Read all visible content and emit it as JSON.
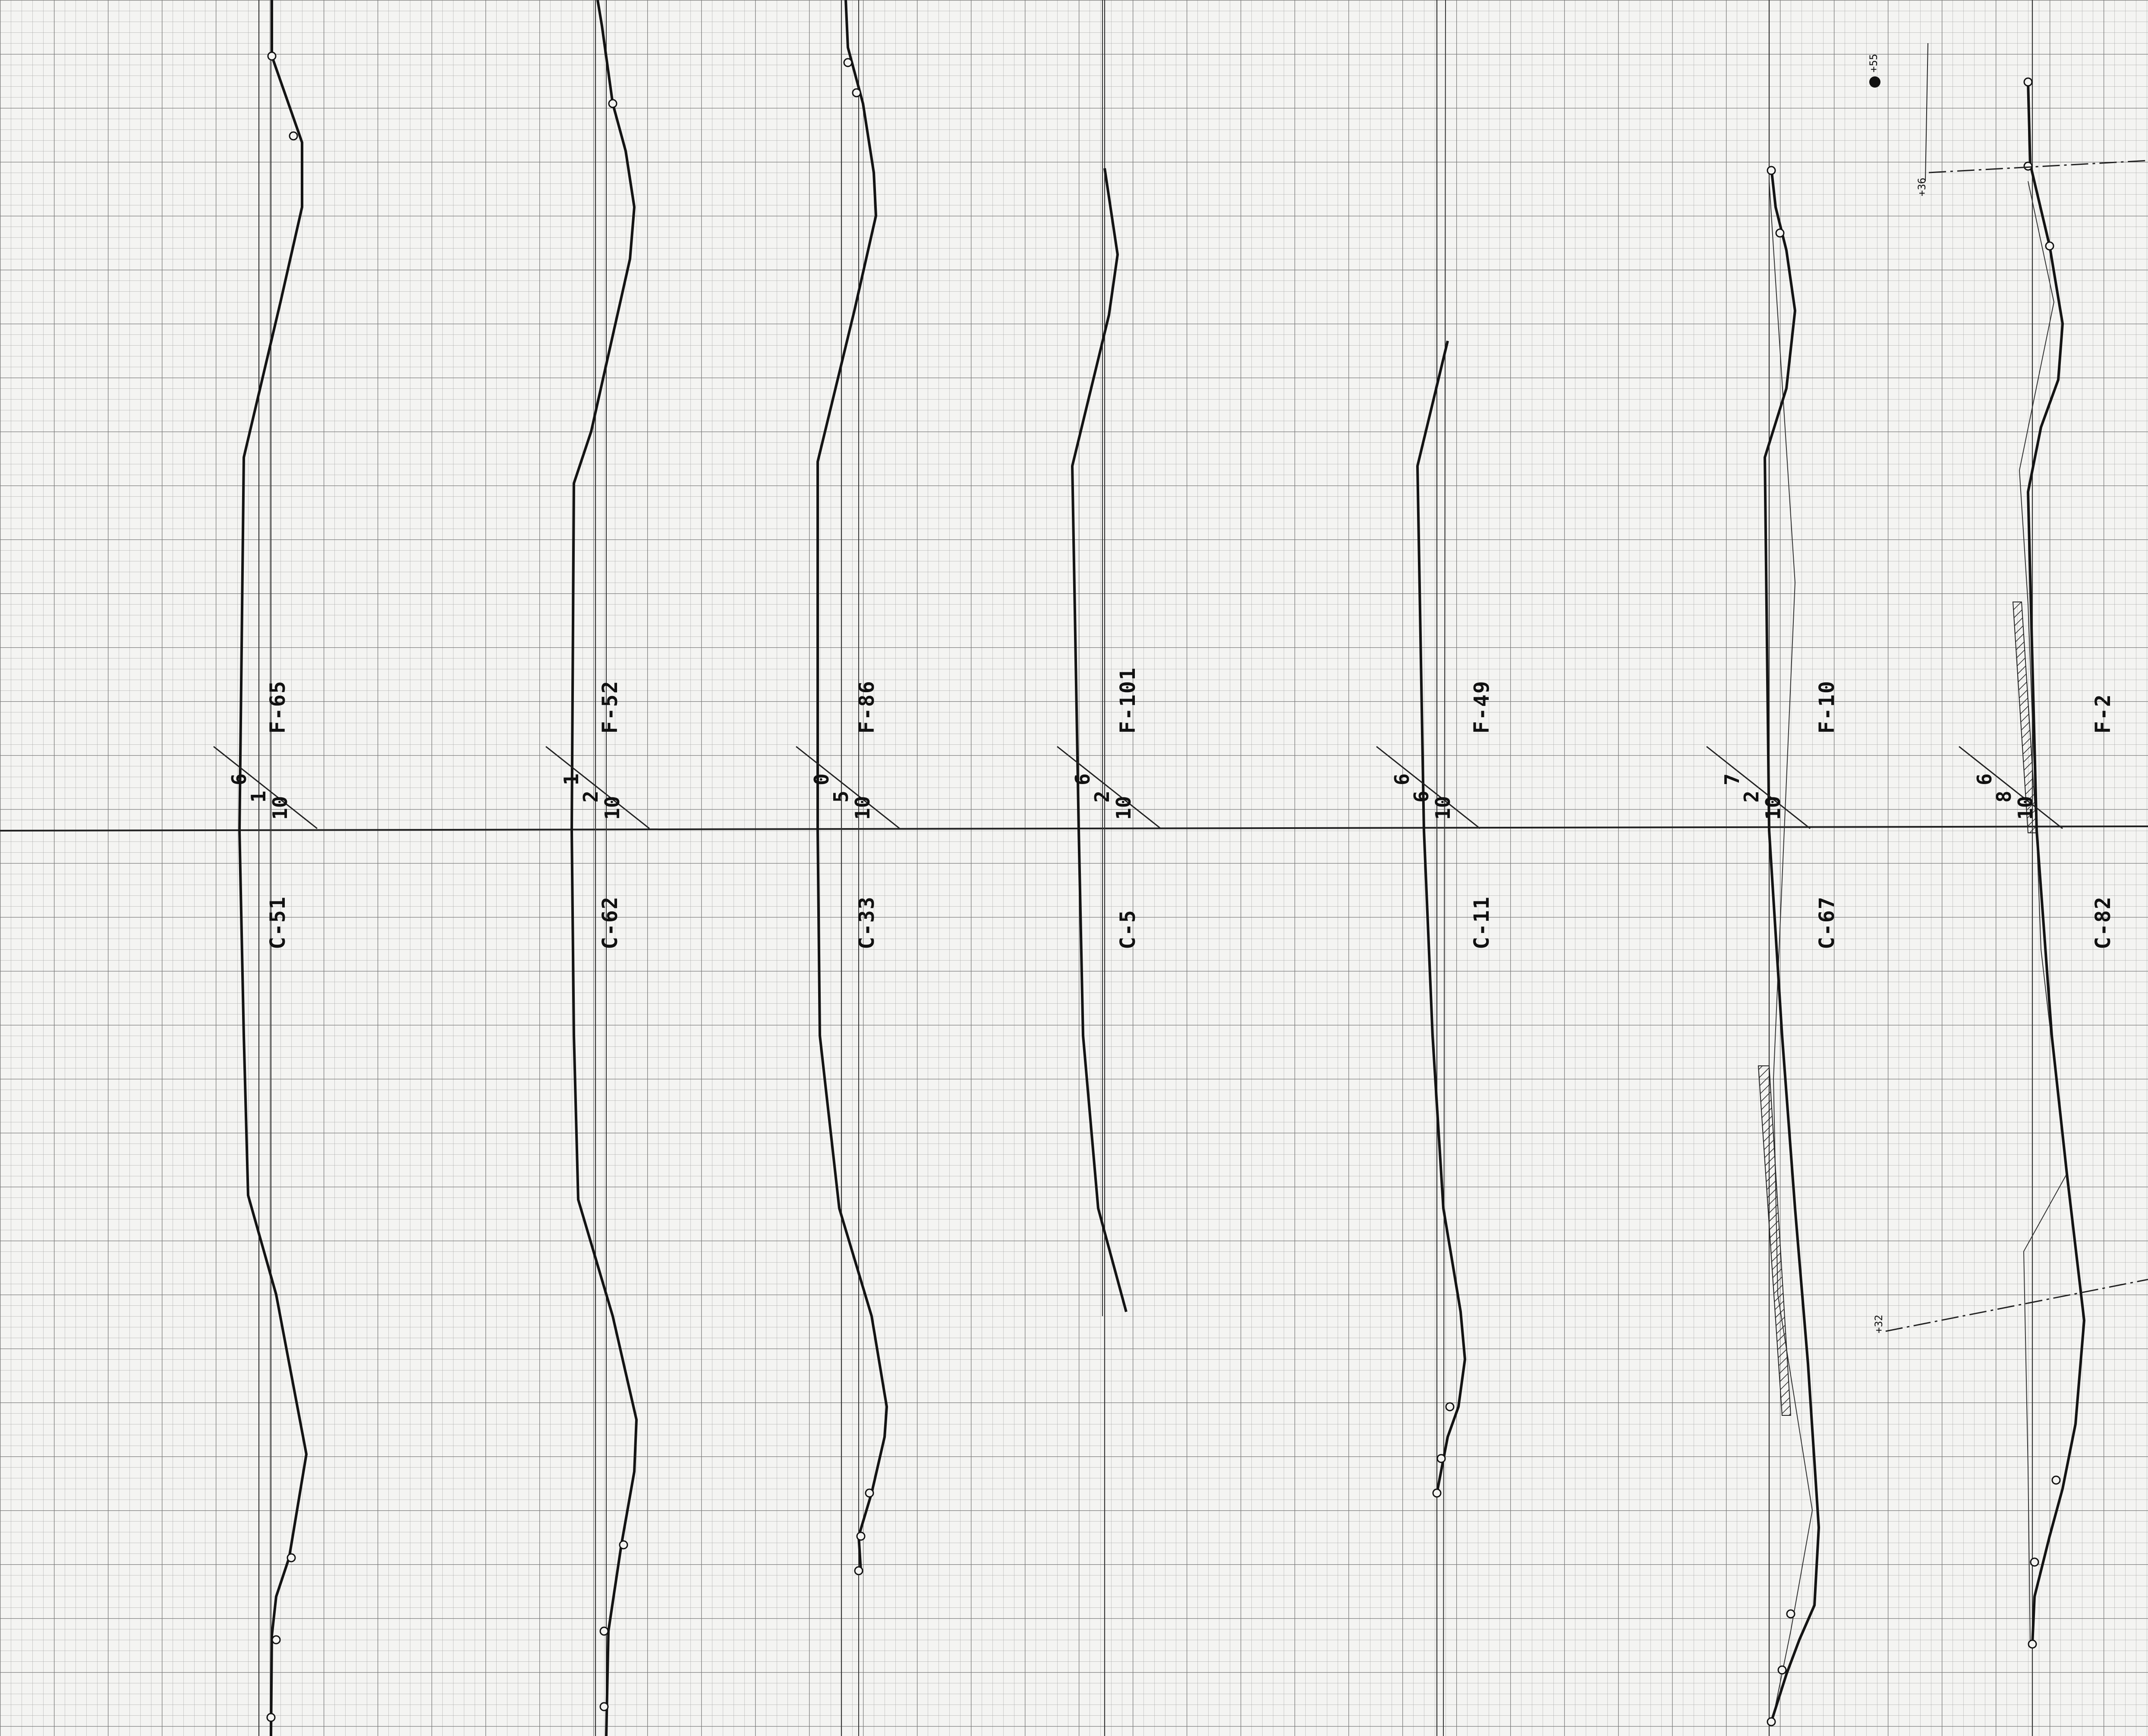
{
  "sheet": {
    "grid_color": "#8e8e8e",
    "ink_color": "#141414",
    "paper_color": "#f4f4f2"
  },
  "sections": [
    {
      "id": "s1",
      "upper_label": "F-65",
      "lower_label": "C-51",
      "fraction": [
        "10",
        "1",
        "6"
      ]
    },
    {
      "id": "s2",
      "upper_label": "F-52",
      "lower_label": "C-62",
      "fraction": [
        "10",
        "2",
        "1"
      ]
    },
    {
      "id": "s3",
      "upper_label": "F-86",
      "lower_label": "C-33",
      "fraction": [
        "10",
        "5",
        "0"
      ]
    },
    {
      "id": "s4",
      "upper_label": "F-101",
      "lower_label": "C-5",
      "fraction": [
        "10",
        "2",
        "6"
      ]
    },
    {
      "id": "s5",
      "upper_label": "F-49",
      "lower_label": "C-11",
      "fraction": [
        "10",
        "6",
        "6"
      ]
    },
    {
      "id": "s6",
      "upper_label": "F-10",
      "lower_label": "C-67",
      "fraction": [
        "10",
        "2",
        "7"
      ]
    },
    {
      "id": "s7",
      "upper_label": "F-2",
      "lower_label": "C-82",
      "fraction": [
        "10",
        "8",
        "6"
      ]
    }
  ],
  "annotations": {
    "top_right_mark": "+55",
    "right_elev_upper": "+36",
    "right_elev_lower": "+32"
  }
}
